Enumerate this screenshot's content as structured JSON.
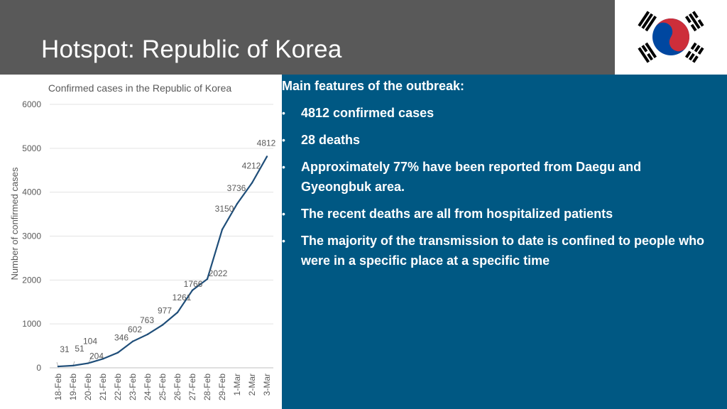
{
  "header": {
    "title": "Hotspot: Republic of Korea",
    "background": "#595959"
  },
  "flag": {
    "icon": "south-korea-flag",
    "colors": {
      "red": "#CD2E3A",
      "blue": "#0047A0",
      "black": "#000000"
    }
  },
  "info": {
    "heading": "Main features of the outbreak:",
    "background": "#005883",
    "bullets": [
      "4812 confirmed cases",
      "28 deaths",
      "Approximately 77% have been reported from Daegu and Gyeongbuk area.",
      "The recent deaths are all from hospitalized patients",
      "The majority of the transmission to date is confined to people who were in a specific place at a specific time"
    ]
  },
  "chart_data": {
    "type": "line",
    "title": "Confirmed cases in the Republic of Korea",
    "xlabel": "",
    "ylabel": "Number of confirmed cases",
    "ylim": [
      0,
      6000
    ],
    "yticks": [
      0,
      1000,
      2000,
      3000,
      4000,
      5000,
      6000
    ],
    "grid": true,
    "line_color": "#1F4E79",
    "categories": [
      "18-Feb",
      "19-Feb",
      "20-Feb",
      "21-Feb",
      "22-Feb",
      "23-Feb",
      "24-Feb",
      "25-Feb",
      "26-Feb",
      "27-Feb",
      "28-Feb",
      "29-Feb",
      "1-Mar",
      "2-Mar",
      "3-Mar"
    ],
    "values": [
      31,
      51,
      104,
      204,
      346,
      602,
      763,
      977,
      1261,
      1766,
      2022,
      3150,
      3736,
      4212,
      4812
    ]
  }
}
